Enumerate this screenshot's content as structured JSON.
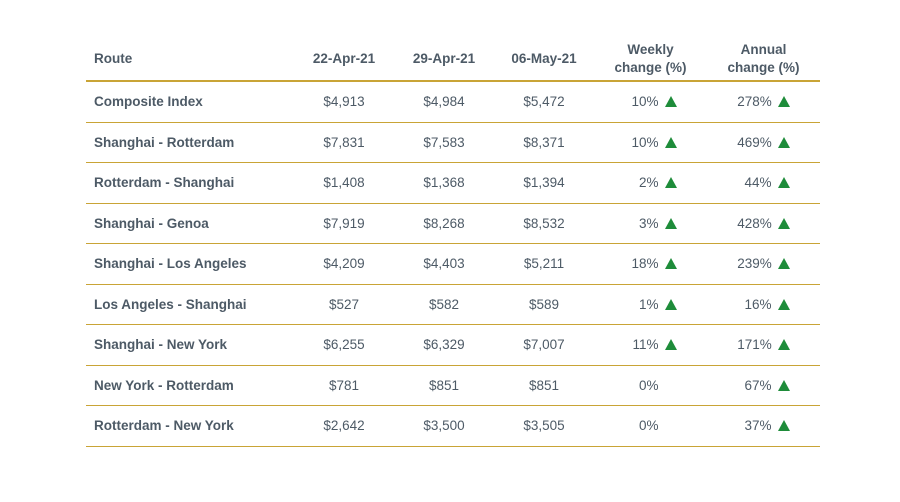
{
  "chart_data": {
    "type": "table",
    "headers": {
      "route": "Route",
      "d1": "22-Apr-21",
      "d2": "29-Apr-21",
      "d3": "06-May-21",
      "weekly_line1": "Weekly",
      "weekly_line2": "change (%)",
      "annual_line1": "Annual",
      "annual_line2": "change (%)"
    },
    "rows": [
      {
        "route": "Composite Index",
        "d1": "$4,913",
        "d2": "$4,984",
        "d3": "$5,472",
        "weekly": "10%",
        "weekly_up": true,
        "annual": "278%",
        "annual_up": true
      },
      {
        "route": "Shanghai - Rotterdam",
        "d1": "$7,831",
        "d2": "$7,583",
        "d3": "$8,371",
        "weekly": "10%",
        "weekly_up": true,
        "annual": "469%",
        "annual_up": true
      },
      {
        "route": "Rotterdam - Shanghai",
        "d1": "$1,408",
        "d2": "$1,368",
        "d3": "$1,394",
        "weekly": "2%",
        "weekly_up": true,
        "annual": "44%",
        "annual_up": true
      },
      {
        "route": "Shanghai - Genoa",
        "d1": "$7,919",
        "d2": "$8,268",
        "d3": "$8,532",
        "weekly": "3%",
        "weekly_up": true,
        "annual": "428%",
        "annual_up": true
      },
      {
        "route": "Shanghai - Los Angeles",
        "d1": "$4,209",
        "d2": "$4,403",
        "d3": "$5,211",
        "weekly": "18%",
        "weekly_up": true,
        "annual": "239%",
        "annual_up": true
      },
      {
        "route": "Los Angeles - Shanghai",
        "d1": "$527",
        "d2": "$582",
        "d3": "$589",
        "weekly": "1%",
        "weekly_up": true,
        "annual": "16%",
        "annual_up": true
      },
      {
        "route": "Shanghai - New York",
        "d1": "$6,255",
        "d2": "$6,329",
        "d3": "$7,007",
        "weekly": "11%",
        "weekly_up": true,
        "annual": "171%",
        "annual_up": true
      },
      {
        "route": "New York - Rotterdam",
        "d1": "$781",
        "d2": "$851",
        "d3": "$851",
        "weekly": "0%",
        "weekly_up": false,
        "annual": "67%",
        "annual_up": true
      },
      {
        "route": "Rotterdam - New York",
        "d1": "$2,642",
        "d2": "$3,500",
        "d3": "$3,505",
        "weekly": "0%",
        "weekly_up": false,
        "annual": "37%",
        "annual_up": true
      }
    ]
  },
  "colors": {
    "text": "#4d5a66",
    "rule": "#c9a436",
    "up_arrow": "#1e8c3a"
  },
  "icons": {
    "up": "up-triangle-icon"
  }
}
